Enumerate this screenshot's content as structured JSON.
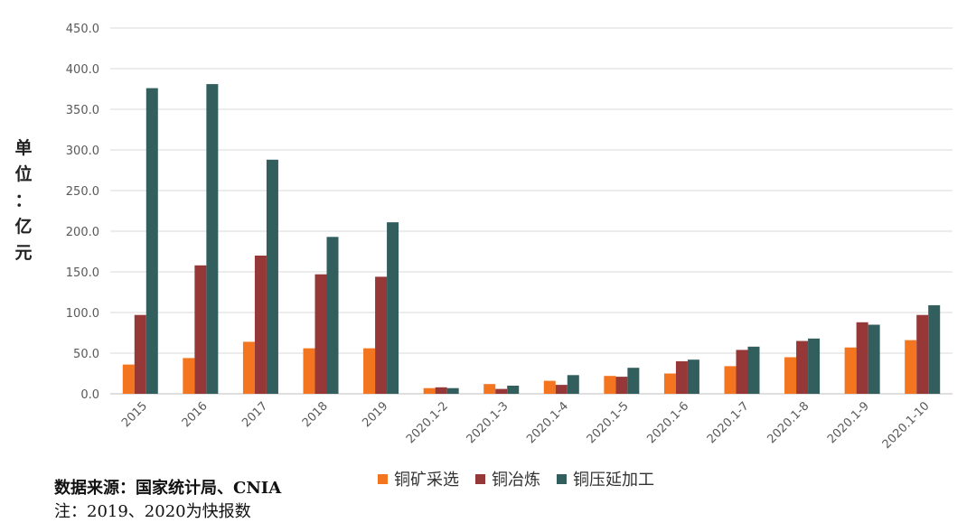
{
  "chart_data": {
    "type": "bar",
    "title": "",
    "ylabel_chars": [
      "单",
      "位",
      "：",
      "亿",
      "元"
    ],
    "ylim": [
      0,
      450
    ],
    "yticks": [
      "0.0",
      "50.0",
      "100.0",
      "150.0",
      "200.0",
      "250.0",
      "300.0",
      "350.0",
      "400.0",
      "450.0"
    ],
    "ytick_values": [
      0,
      50,
      100,
      150,
      200,
      250,
      300,
      350,
      400,
      450
    ],
    "grid": true,
    "categories": [
      "2015",
      "2016",
      "2017",
      "2018",
      "2019",
      "2020.1-2",
      "2020.1-3",
      "2020.1-4",
      "2020.1-5",
      "2020.1-6",
      "2020.1-7",
      "2020.1-8",
      "2020.1-9",
      "2020.1-10"
    ],
    "series": [
      {
        "name": "铜矿采选",
        "color": "#F4751F",
        "values": [
          36,
          44,
          64,
          56,
          56,
          7,
          12,
          16,
          22,
          25,
          34,
          45,
          57,
          66
        ]
      },
      {
        "name": "铜冶炼",
        "color": "#963838",
        "values": [
          97,
          158,
          170,
          147,
          144,
          8,
          6,
          11,
          21,
          40,
          54,
          65,
          88,
          97
        ]
      },
      {
        "name": "铜压延加工",
        "color": "#325E5E",
        "values": [
          376,
          381,
          288,
          193,
          211,
          7,
          10,
          23,
          32,
          42,
          58,
          68,
          85,
          109
        ]
      }
    ],
    "legend_position": "bottom-center"
  },
  "footer": {
    "source": "数据来源：国家统计局、CNIA",
    "note": "注：2019、2020为快报数"
  }
}
